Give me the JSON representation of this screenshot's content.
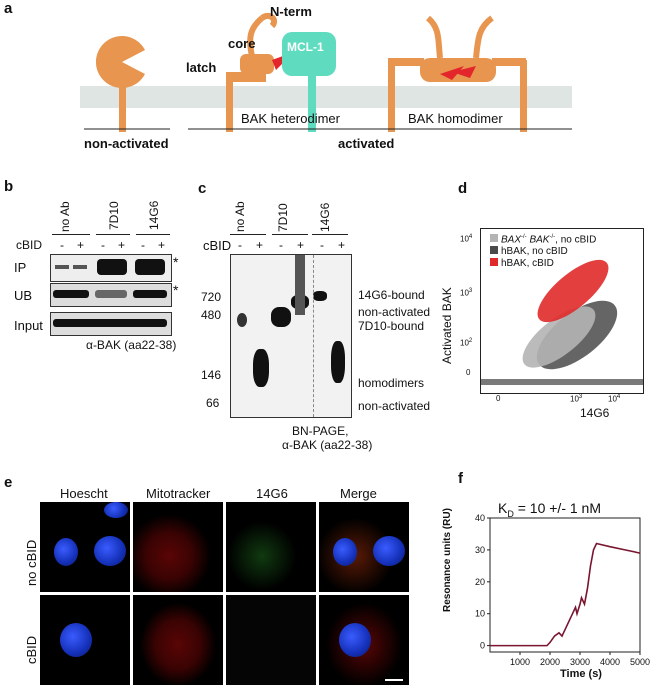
{
  "panel_labels": {
    "a": "a",
    "b": "b",
    "c": "c",
    "d": "d",
    "e": "e",
    "f": "f"
  },
  "panel_a": {
    "n_term": "N-term",
    "core": "core",
    "latch": "latch",
    "mcl1": "MCL-1",
    "heterodimer": "BAK heterodimer",
    "homodimer": "BAK homodimer",
    "non_activated": "non-activated",
    "activated": "activated",
    "colors": {
      "bak": "#e8954f",
      "mcl1": "#5fdcbf",
      "membrane": "#dfe5e2",
      "bh3": "#e3262b"
    }
  },
  "panel_b": {
    "lanes": [
      "no Ab",
      "7D10",
      "14G6"
    ],
    "cbid_label": "cBID",
    "cbid_signs": [
      "-",
      "+",
      "-",
      "+",
      "-",
      "+"
    ],
    "rows": [
      "IP",
      "UB",
      "Input"
    ],
    "star": "*",
    "antibody": "α-BAK (aa22-38)"
  },
  "panel_c": {
    "lanes": [
      "no Ab",
      "7D10",
      "14G6"
    ],
    "cbid_label": "cBID",
    "cbid_signs": [
      "-",
      "+",
      "-",
      "+",
      "-",
      "+"
    ],
    "markers": [
      "720",
      "480",
      "146",
      "66"
    ],
    "band_labels": [
      "14G6-bound",
      "non-activated",
      "7D10-bound",
      "homodimers",
      "non-activated"
    ],
    "caption_line1": "BN-PAGE,",
    "caption_line2": "α-BAK (aa22-38)"
  },
  "panel_d": {
    "ylabel": "Activated BAK",
    "xlabel": "14G6",
    "legend": [
      {
        "label_italic": "BAX",
        "sup1": "-/-",
        "label_italic2": " BAK",
        "sup2": "-/-",
        "rest": ", no cBID",
        "color": "#b4b4b4"
      },
      {
        "label": "hBAK, no cBID",
        "color": "#4a4a4a"
      },
      {
        "label": "hBAK, cBID",
        "color": "#e02a2a"
      }
    ],
    "yticks": [
      "10",
      "10",
      "10",
      "0"
    ],
    "yexp": [
      "4",
      "3",
      "2",
      ""
    ],
    "xticks": [
      "0",
      "10",
      "10"
    ],
    "xexp": [
      "",
      "3",
      "4"
    ]
  },
  "panel_e": {
    "columns": [
      "Hoescht",
      "Mitotracker",
      "14G6",
      "Merge"
    ],
    "rows": [
      "no cBID",
      "cBID"
    ]
  },
  "panel_f": {
    "title_k": "K",
    "title_sub": "D",
    "title_rest": " = 10 +/- 1 nM",
    "ylabel": "Resonance units (RU)",
    "xlabel": "Time (s)",
    "chart_data": {
      "type": "line",
      "x": [
        0,
        500,
        1000,
        1500,
        1900,
        2000,
        2150,
        2300,
        2400,
        2600,
        2750,
        2850,
        2900,
        3000,
        3050,
        3150,
        3250,
        3350,
        3450,
        3550,
        4000,
        4500,
        5000
      ],
      "y": [
        0,
        0,
        0,
        0,
        0,
        1,
        3,
        4,
        3,
        7,
        10,
        12,
        10,
        13,
        15,
        13,
        18,
        25,
        30,
        32,
        31,
        30,
        29
      ],
      "xlim": [
        0,
        5000
      ],
      "ylim": [
        -2,
        40
      ],
      "xticks": [
        1000,
        2000,
        3000,
        4000,
        5000
      ],
      "yticks": [
        0,
        10,
        20,
        30,
        40
      ],
      "color": "#7a1530"
    }
  }
}
